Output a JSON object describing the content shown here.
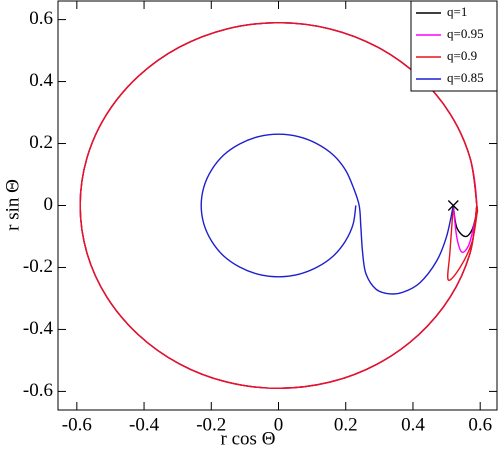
{
  "chart_data": {
    "type": "line",
    "xlabel": "r cos Θ",
    "ylabel": "r sin Θ",
    "xlim": [
      -0.656,
      0.65
    ],
    "ylim": [
      -0.66,
      0.66
    ],
    "xticks": [
      -0.6,
      -0.4,
      -0.2,
      0,
      0.2,
      0.4,
      0.6
    ],
    "yticks": [
      -0.6,
      -0.4,
      -0.2,
      0,
      0.2,
      0.4,
      0.6
    ],
    "legend": "upper right",
    "marker": {
      "x": 0.52,
      "y": 0
    },
    "series": [
      {
        "name": "q=1",
        "color": "#000000",
        "x": [
          0.52,
          0.53,
          0.555,
          0.575,
          0.588,
          0.59,
          0.57,
          0.511,
          0.417,
          0.295,
          0.153,
          0,
          -0.153,
          -0.295,
          -0.417,
          -0.511,
          -0.57,
          -0.59,
          -0.57,
          -0.511,
          -0.417,
          -0.295,
          -0.153,
          0,
          0.153,
          0.295,
          0.417,
          0.511,
          0.57,
          0.59
        ],
        "y": [
          0,
          -0.07,
          -0.1,
          -0.08,
          -0.03,
          0,
          0.153,
          0.295,
          0.417,
          0.511,
          0.57,
          0.59,
          0.57,
          0.511,
          0.417,
          0.295,
          0.153,
          0,
          -0.153,
          -0.295,
          -0.417,
          -0.511,
          -0.57,
          -0.59,
          -0.57,
          -0.511,
          -0.417,
          -0.295,
          -0.153,
          0
        ]
      },
      {
        "name": "q=0.95",
        "color": "#ff00ff",
        "x": [
          0.52,
          0.53,
          0.545,
          0.565,
          0.58,
          0.59,
          0.57,
          0.511,
          0.417,
          0.295,
          0.153,
          0,
          -0.153,
          -0.295,
          -0.417,
          -0.511,
          -0.57,
          -0.59,
          -0.57,
          -0.511,
          -0.417,
          -0.295,
          -0.153,
          0,
          0.153,
          0.295,
          0.417,
          0.511,
          0.57,
          0.59
        ],
        "y": [
          0,
          -0.1,
          -0.15,
          -0.13,
          -0.07,
          0,
          0.153,
          0.295,
          0.417,
          0.511,
          0.57,
          0.59,
          0.57,
          0.511,
          0.417,
          0.295,
          0.153,
          0,
          -0.153,
          -0.295,
          -0.417,
          -0.511,
          -0.57,
          -0.59,
          -0.57,
          -0.511,
          -0.417,
          -0.295,
          -0.153,
          0
        ]
      },
      {
        "name": "q=0.9",
        "color": "#e8141c",
        "x": [
          0.52,
          0.51,
          0.505,
          0.54,
          0.575,
          0.59,
          0.59,
          0.57,
          0.511,
          0.417,
          0.295,
          0.153,
          0,
          -0.153,
          -0.295,
          -0.417,
          -0.511,
          -0.57,
          -0.59,
          -0.57,
          -0.511,
          -0.417,
          -0.295,
          -0.153,
          0,
          0.153,
          0.295,
          0.417,
          0.511,
          0.57,
          0.59
        ],
        "y": [
          0,
          -0.15,
          -0.24,
          -0.2,
          -0.12,
          -0.03,
          0,
          0.153,
          0.295,
          0.417,
          0.511,
          0.57,
          0.59,
          0.57,
          0.511,
          0.417,
          0.295,
          0.153,
          0,
          -0.153,
          -0.295,
          -0.417,
          -0.511,
          -0.57,
          -0.59,
          -0.57,
          -0.511,
          -0.417,
          -0.295,
          -0.153,
          0
        ]
      },
      {
        "name": "q=0.85",
        "color": "#1f1fcf",
        "x": [
          0.52,
          0.5,
          0.47,
          0.42,
          0.37,
          0.33,
          0.29,
          0.26,
          0.25,
          0.245,
          0.24,
          0.222,
          0.199,
          0.163,
          0.115,
          0.06,
          0,
          -0.06,
          -0.115,
          -0.163,
          -0.199,
          -0.222,
          -0.23,
          -0.222,
          -0.199,
          -0.163,
          -0.115,
          -0.06,
          0,
          0.06,
          0.115,
          0.163,
          0.199,
          0.222,
          0.23
        ],
        "y": [
          0,
          -0.1,
          -0.18,
          -0.25,
          -0.28,
          -0.285,
          -0.27,
          -0.22,
          -0.15,
          -0.07,
          0,
          0.06,
          0.115,
          0.163,
          0.199,
          0.222,
          0.23,
          0.222,
          0.199,
          0.163,
          0.115,
          0.06,
          0,
          -0.06,
          -0.115,
          -0.163,
          -0.199,
          -0.222,
          -0.23,
          -0.222,
          -0.199,
          -0.163,
          -0.115,
          -0.06,
          0
        ]
      }
    ]
  }
}
